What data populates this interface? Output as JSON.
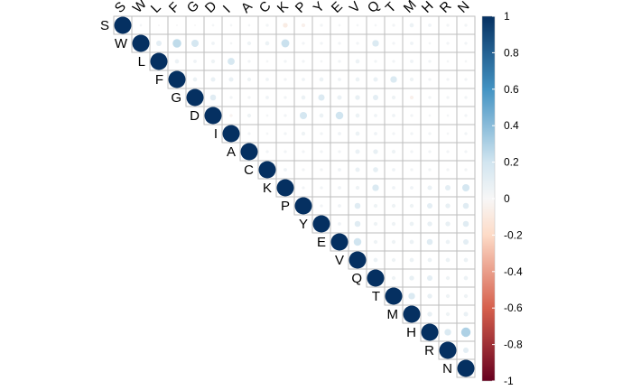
{
  "chart_data": {
    "type": "heatmap",
    "subtype": "correlation-upper-triangle-circles",
    "variables": [
      "S",
      "W",
      "L",
      "F",
      "G",
      "D",
      "I",
      "A",
      "C",
      "K",
      "P",
      "Y",
      "E",
      "V",
      "Q",
      "T",
      "M",
      "H",
      "R",
      "N"
    ],
    "matrix": [
      [
        1,
        0.02,
        0.01,
        0.01,
        0.01,
        0.02,
        0.02,
        0.02,
        0.03,
        -0.08,
        -0.05,
        0.03,
        0.02,
        0.02,
        0.02,
        0.03,
        0.06,
        0.04,
        0.03,
        0.03
      ],
      [
        0,
        1,
        0.1,
        0.25,
        0.18,
        0.04,
        0.02,
        0.05,
        0.06,
        0.22,
        0.03,
        0.03,
        0.03,
        0.03,
        0.15,
        0.03,
        0.04,
        0.02,
        0.03,
        0.03
      ],
      [
        0,
        0,
        1,
        0.06,
        0.04,
        0.05,
        0.17,
        0.03,
        0.02,
        0.03,
        0.03,
        0.02,
        0.03,
        0.06,
        0.03,
        0.03,
        0.04,
        0.03,
        0.02,
        0.02
      ],
      [
        0,
        0,
        0,
        1,
        0.06,
        0.07,
        0.07,
        0.05,
        0.04,
        0.03,
        0.04,
        0.06,
        0.04,
        0.06,
        0.07,
        0.15,
        0.05,
        0.03,
        0.03,
        0.03
      ],
      [
        0,
        0,
        0,
        0,
        1,
        0.12,
        0.03,
        0.03,
        0.04,
        0.03,
        0.06,
        0.14,
        0.07,
        0.08,
        0.1,
        0.05,
        -0.05,
        0.03,
        0.03,
        0.03
      ],
      [
        0,
        0,
        0,
        0,
        0,
        1,
        -0.03,
        0.05,
        0.02,
        0.03,
        0.18,
        0.06,
        0.2,
        0.06,
        0.04,
        0.04,
        0.03,
        0.02,
        0.02,
        0.03
      ],
      [
        0,
        0,
        0,
        0,
        0,
        0,
        1,
        0.03,
        0.02,
        0.03,
        0.05,
        0.03,
        0.04,
        0.06,
        0.04,
        0.03,
        0.03,
        0.03,
        0.02,
        0.03
      ],
      [
        0,
        0,
        0,
        0,
        0,
        0,
        0,
        1,
        0.03,
        0.03,
        0.03,
        0.03,
        0.03,
        0.07,
        0.08,
        0.05,
        0.03,
        0.03,
        0.03,
        0.03
      ],
      [
        0,
        0,
        0,
        0,
        0,
        0,
        0,
        0,
        1,
        0.04,
        0.03,
        0.03,
        0.04,
        0.07,
        0.09,
        0.04,
        0.03,
        0.03,
        0.03,
        0.03
      ],
      [
        0,
        0,
        0,
        0,
        0,
        0,
        0,
        0,
        0,
        1,
        0.03,
        0.03,
        0.04,
        0.05,
        0.15,
        0.04,
        0.04,
        0.07,
        0.1,
        0.18
      ],
      [
        0,
        0,
        0,
        0,
        0,
        0,
        0,
        0,
        0,
        0,
        1,
        0.03,
        0.04,
        0.12,
        0.05,
        0.05,
        0.05,
        0.1,
        0.08,
        0.12
      ],
      [
        0,
        0,
        0,
        0,
        0,
        0,
        0,
        0,
        0,
        0,
        0,
        1,
        0.04,
        0.12,
        0.05,
        0.05,
        0.06,
        0.08,
        0.08,
        0.12
      ],
      [
        0,
        0,
        0,
        0,
        0,
        0,
        0,
        0,
        0,
        0,
        0,
        0,
        1,
        0.2,
        0.05,
        0.05,
        0.06,
        0.12,
        0.06,
        0.1
      ],
      [
        0,
        0,
        0,
        0,
        0,
        0,
        0,
        0,
        0,
        0,
        0,
        0,
        0,
        1,
        0.06,
        0.05,
        0.06,
        0.06,
        0.06,
        0.06
      ],
      [
        0,
        0,
        0,
        0,
        0,
        0,
        0,
        0,
        0,
        0,
        0,
        0,
        0,
        0,
        1,
        0.05,
        0.08,
        0.1,
        0.05,
        0.06
      ],
      [
        0,
        0,
        0,
        0,
        0,
        0,
        0,
        0,
        0,
        0,
        0,
        0,
        0,
        0,
        0,
        1,
        0.15,
        0.08,
        0.05,
        0.05
      ],
      [
        0,
        0,
        0,
        0,
        0,
        0,
        0,
        0,
        0,
        0,
        0,
        0,
        0,
        0,
        0,
        0,
        1,
        0.08,
        0.05,
        0.07
      ],
      [
        0,
        0,
        0,
        0,
        0,
        0,
        0,
        0,
        0,
        0,
        0,
        0,
        0,
        0,
        0,
        0,
        0,
        1,
        0.15,
        0.3
      ],
      [
        0,
        0,
        0,
        0,
        0,
        0,
        0,
        0,
        0,
        0,
        0,
        0,
        0,
        0,
        0,
        0,
        0,
        0,
        1,
        0.1
      ],
      [
        0,
        0,
        0,
        0,
        0,
        0,
        0,
        0,
        0,
        0,
        0,
        0,
        0,
        0,
        0,
        0,
        0,
        0,
        0,
        1
      ]
    ],
    "colorbar": {
      "range": [
        -1,
        1
      ],
      "ticks": [
        "1",
        "0.8",
        "0.6",
        "0.4",
        "0.2",
        "0",
        "-0.2",
        "-0.4",
        "-0.6",
        "-0.8",
        "-1"
      ],
      "colors": {
        "neg_strong": "#67001F",
        "neg_mid": "#D6604D",
        "neg_light": "#FDDBC7",
        "neutral": "#F7F7F7",
        "pos_light": "#D1E5F0",
        "pos_mid": "#4393C3",
        "pos_strong": "#053061"
      }
    },
    "grid": true,
    "legend_position": "right"
  }
}
